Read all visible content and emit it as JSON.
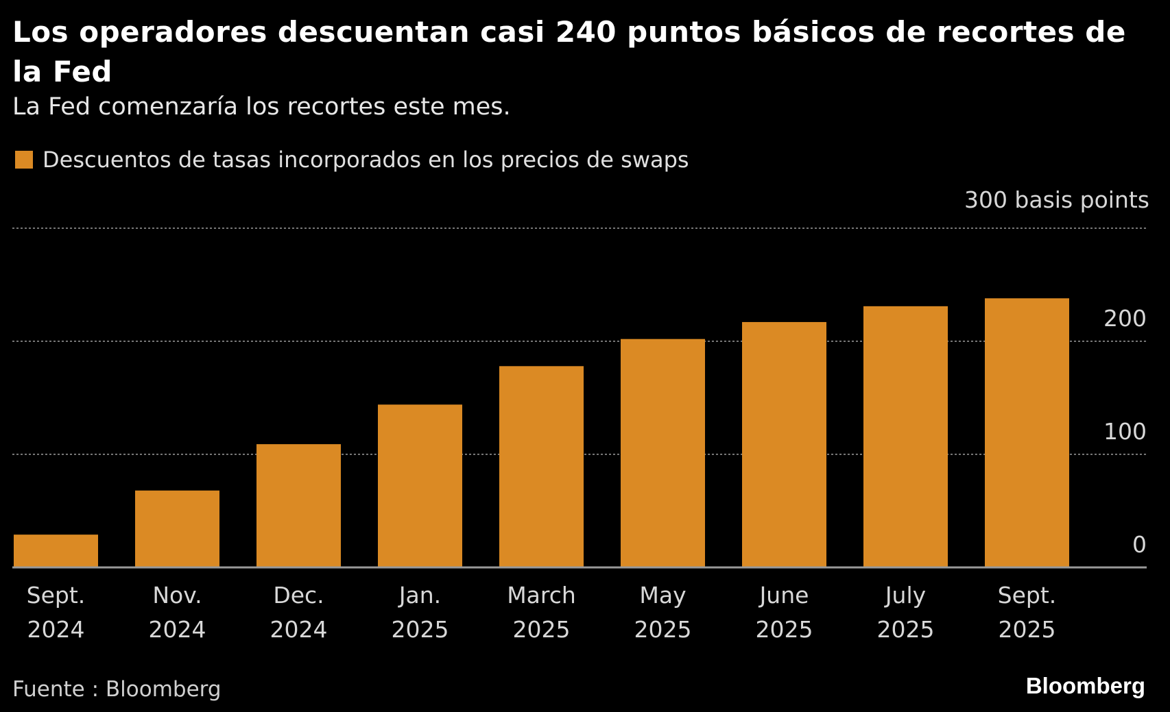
{
  "chart_data": {
    "type": "bar",
    "title": "Los operadores descuentan casi 240 puntos básicos de recortes de la Fed",
    "subtitle": "La Fed comenzaría los recortes este mes.",
    "categories": [
      [
        "Sept.",
        "2024"
      ],
      [
        "Nov.",
        "2024"
      ],
      [
        "Dec.",
        "2024"
      ],
      [
        "Jan.",
        "2025"
      ],
      [
        "March",
        "2025"
      ],
      [
        "May",
        "2025"
      ],
      [
        "June",
        "2025"
      ],
      [
        "July",
        "2025"
      ],
      [
        "Sept.",
        "2025"
      ]
    ],
    "series": [
      {
        "name": "Descuentos de tasas incorporados en los precios de swaps",
        "values": [
          29,
          68,
          109,
          144,
          178,
          202,
          217,
          231,
          238
        ],
        "color": "#db8a24"
      }
    ],
    "ylabel": "300 basis points",
    "yticks": [
      0,
      100,
      200
    ],
    "ylim": [
      0,
      300
    ],
    "grid": true,
    "y_axis_side": "right",
    "legend": "top-left",
    "source": "Fuente : Bloomberg",
    "brand": "Bloomberg"
  }
}
